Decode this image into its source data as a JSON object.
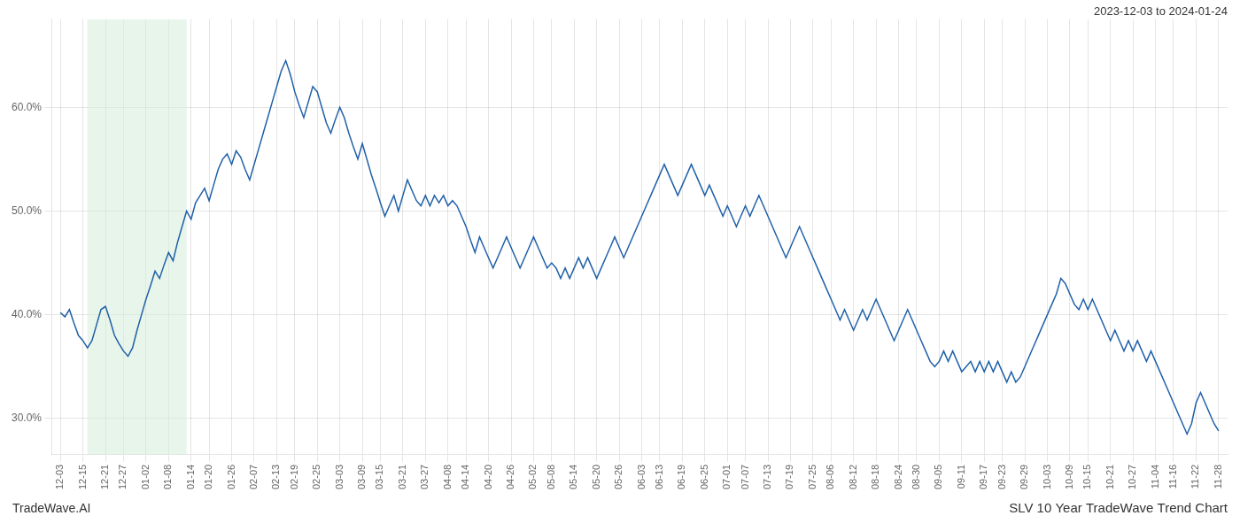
{
  "chart_data": {
    "type": "line",
    "title": "SLV 10 Year TradeWave Trend Chart",
    "subtitle": "2023-12-03 to 2024-01-24",
    "annotations": [
      "TradeWave.AI"
    ],
    "color": "#2060a8",
    "grid": true,
    "ylim": [
      26.5,
      68.5
    ],
    "yticks": [
      {
        "value": 30.0,
        "label": "30.0%"
      },
      {
        "value": 40.0,
        "label": "40.0%"
      },
      {
        "value": 50.0,
        "label": "50.0%"
      },
      {
        "value": 60.0,
        "label": "60.0%"
      }
    ],
    "shade": {
      "start": 6,
      "end": 28,
      "color": "#d4edda"
    },
    "categories": [
      "12-03",
      null,
      null,
      null,
      null,
      "12-15",
      null,
      null,
      null,
      null,
      "12-21",
      null,
      null,
      null,
      "12-27",
      null,
      null,
      null,
      null,
      "01-02",
      null,
      null,
      null,
      null,
      "01-08",
      null,
      null,
      null,
      null,
      "01-14",
      null,
      null,
      null,
      "01-20",
      null,
      null,
      null,
      null,
      "01-26",
      null,
      null,
      null,
      null,
      "02-07",
      null,
      null,
      null,
      null,
      "02-13",
      null,
      null,
      null,
      "02-19",
      null,
      null,
      null,
      null,
      "02-25",
      null,
      null,
      null,
      null,
      "03-03",
      null,
      null,
      null,
      null,
      "03-09",
      null,
      null,
      null,
      "03-15",
      null,
      null,
      null,
      null,
      "03-21",
      null,
      null,
      null,
      null,
      "03-27",
      null,
      null,
      null,
      null,
      "04-08",
      null,
      null,
      null,
      "04-14",
      null,
      null,
      null,
      null,
      "04-20",
      null,
      null,
      null,
      null,
      "04-26",
      null,
      null,
      null,
      null,
      "05-02",
      null,
      null,
      null,
      "05-08",
      null,
      null,
      null,
      null,
      "05-14",
      null,
      null,
      null,
      null,
      "05-20",
      null,
      null,
      null,
      null,
      "05-26",
      null,
      null,
      null,
      null,
      "06-03",
      null,
      null,
      null,
      "06-13",
      null,
      null,
      null,
      null,
      "06-19",
      null,
      null,
      null,
      null,
      "06-25",
      null,
      null,
      null,
      null,
      "07-01",
      null,
      null,
      null,
      "07-07",
      null,
      null,
      null,
      null,
      "07-13",
      null,
      null,
      null,
      null,
      "07-19",
      null,
      null,
      null,
      null,
      "07-25",
      null,
      null,
      null,
      "08-06",
      null,
      null,
      null,
      null,
      "08-12",
      null,
      null,
      null,
      null,
      "08-18",
      null,
      null,
      null,
      null,
      "08-24",
      null,
      null,
      null,
      "08-30",
      null,
      null,
      null,
      null,
      "09-05",
      null,
      null,
      null,
      null,
      "09-11",
      null,
      null,
      null,
      null,
      "09-17",
      null,
      null,
      null,
      "09-23",
      null,
      null,
      null,
      null,
      "09-29",
      null,
      null,
      null,
      null,
      "10-03",
      null,
      null,
      null,
      null,
      "10-09",
      null,
      null,
      null,
      "10-15",
      null,
      null,
      null,
      null,
      "10-21",
      null,
      null,
      null,
      null,
      "10-27",
      null,
      null,
      null,
      null,
      "11-04",
      null,
      null,
      null,
      "11-16",
      null,
      null,
      null,
      null,
      "11-22",
      null,
      null,
      null,
      null,
      "11-28"
    ],
    "values": [
      40.2,
      39.8,
      40.5,
      39.2,
      38.0,
      37.5,
      36.8,
      37.5,
      39.0,
      40.5,
      40.8,
      39.5,
      38.0,
      37.2,
      36.5,
      36.0,
      36.8,
      38.5,
      40.0,
      41.5,
      42.8,
      44.2,
      43.5,
      44.8,
      46.0,
      45.2,
      47.0,
      48.5,
      50.0,
      49.2,
      50.8,
      51.5,
      52.2,
      51.0,
      52.5,
      54.0,
      55.0,
      55.5,
      54.5,
      55.8,
      55.2,
      54.0,
      53.0,
      54.5,
      56.0,
      57.5,
      59.0,
      60.5,
      62.0,
      63.5,
      64.5,
      63.2,
      61.5,
      60.2,
      59.0,
      60.5,
      62.0,
      61.5,
      60.0,
      58.5,
      57.5,
      58.8,
      60.0,
      59.0,
      57.5,
      56.2,
      55.0,
      56.5,
      55.0,
      53.5,
      52.2,
      50.8,
      49.5,
      50.5,
      51.5,
      50.0,
      51.5,
      53.0,
      52.0,
      51.0,
      50.5,
      51.5,
      50.5,
      51.5,
      50.8,
      51.5,
      50.5,
      51.0,
      50.5,
      49.5,
      48.5,
      47.2,
      46.0,
      47.5,
      46.5,
      45.5,
      44.5,
      45.5,
      46.5,
      47.5,
      46.5,
      45.5,
      44.5,
      45.5,
      46.5,
      47.5,
      46.5,
      45.5,
      44.5,
      45.0,
      44.5,
      43.5,
      44.5,
      43.5,
      44.5,
      45.5,
      44.5,
      45.5,
      44.5,
      43.5,
      44.5,
      45.5,
      46.5,
      47.5,
      46.5,
      45.5,
      46.5,
      47.5,
      48.5,
      49.5,
      50.5,
      51.5,
      52.5,
      53.5,
      54.5,
      53.5,
      52.5,
      51.5,
      52.5,
      53.5,
      54.5,
      53.5,
      52.5,
      51.5,
      52.5,
      51.5,
      50.5,
      49.5,
      50.5,
      49.5,
      48.5,
      49.5,
      50.5,
      49.5,
      50.5,
      51.5,
      50.5,
      49.5,
      48.5,
      47.5,
      46.5,
      45.5,
      46.5,
      47.5,
      48.5,
      47.5,
      46.5,
      45.5,
      44.5,
      43.5,
      42.5,
      41.5,
      40.5,
      39.5,
      40.5,
      39.5,
      38.5,
      39.5,
      40.5,
      39.5,
      40.5,
      41.5,
      40.5,
      39.5,
      38.5,
      37.5,
      38.5,
      39.5,
      40.5,
      39.5,
      38.5,
      37.5,
      36.5,
      35.5,
      35.0,
      35.5,
      36.5,
      35.5,
      36.5,
      35.5,
      34.5,
      35.0,
      35.5,
      34.5,
      35.5,
      34.5,
      35.5,
      34.5,
      35.5,
      34.5,
      33.5,
      34.5,
      33.5,
      34.0,
      35.0,
      36.0,
      37.0,
      38.0,
      39.0,
      40.0,
      41.0,
      42.0,
      43.5,
      43.0,
      42.0,
      41.0,
      40.5,
      41.5,
      40.5,
      41.5,
      40.5,
      39.5,
      38.5,
      37.5,
      38.5,
      37.5,
      36.5,
      37.5,
      36.5,
      37.5,
      36.5,
      35.5,
      36.5,
      35.5,
      34.5,
      33.5,
      32.5,
      31.5,
      30.5,
      29.5,
      28.5,
      29.5,
      31.5,
      32.5,
      31.5,
      30.5,
      29.5,
      28.8
    ]
  }
}
